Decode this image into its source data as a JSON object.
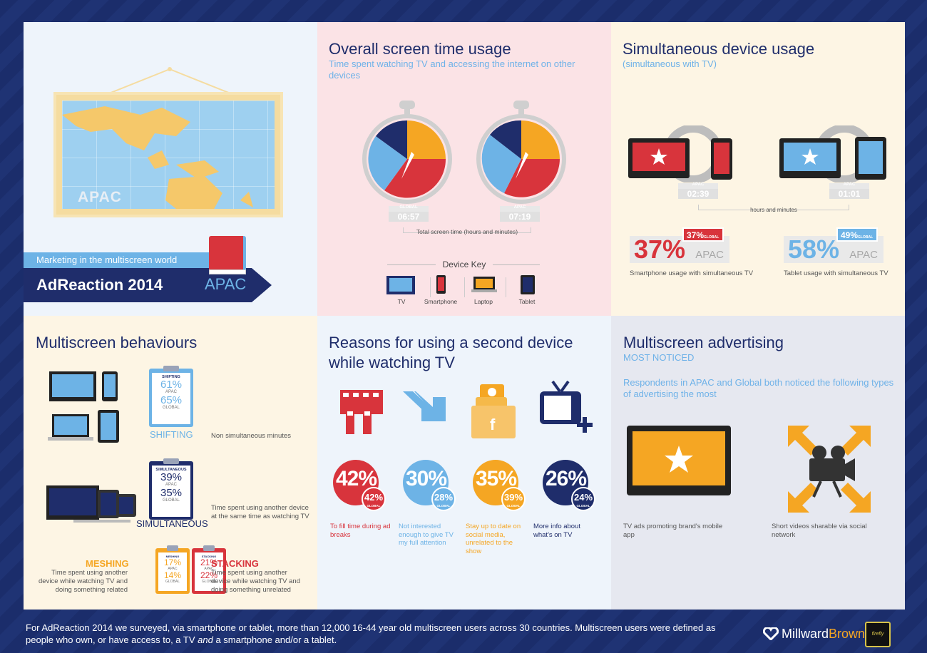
{
  "title_panel": {
    "map_label": "APAC",
    "tagline": "Marketing in the multiscreen world",
    "report_title": "AdReaction 2014",
    "region": "APAC"
  },
  "screen_time": {
    "title": "Overall screen time usage",
    "subtitle": "Time spent watching TV and accessing the internet on other devices",
    "timers": [
      {
        "label": "GLOBAL",
        "time": "06:57"
      },
      {
        "label": "APAC",
        "time": "07:19"
      }
    ],
    "caption": "Total screen time (hours and minutes)",
    "device_key_title": "Device Key",
    "devices": [
      "TV",
      "Smartphone",
      "Laptop",
      "Tablet"
    ]
  },
  "simultaneous": {
    "title": "Simultaneous device usage",
    "subtitle": "(simultaneous with TV)",
    "times": [
      {
        "label": "APAC",
        "time": "02:39"
      },
      {
        "label": "APAC",
        "time": "01:01"
      }
    ],
    "time_caption": "hours and minutes",
    "stats": [
      {
        "apac": "37%",
        "global": "37%",
        "global_label": "GLOBAL",
        "apac_label": "APAC",
        "caption": "Smartphone usage with simultaneous TV"
      },
      {
        "apac": "58%",
        "global": "49%",
        "global_label": "GLOBAL",
        "apac_label": "APAC",
        "caption": "Tablet usage with simultaneous TV"
      }
    ]
  },
  "behaviours": {
    "title": "Multiscreen behaviours",
    "shifting": {
      "tag": "SHIFTING",
      "apac": "61%",
      "global": "65%",
      "apac_label": "APAC",
      "global_label": "GLOBAL",
      "label": "SHIFTING",
      "desc": "Non simultaneous minutes"
    },
    "simultaneous": {
      "tag": "SIMULTANEOUS",
      "apac": "39%",
      "global": "35%",
      "apac_label": "APAC",
      "global_label": "GLOBAL",
      "label": "SIMULTANEOUS",
      "desc": "Time spent using another device at the same time as watching TV"
    },
    "meshing": {
      "tag": "MESHING",
      "apac": "17%",
      "global": "14%",
      "apac_label": "APAC",
      "global_label": "GLOBAL",
      "label": "MESHING",
      "desc": "Time spent using another device while watching TV and doing something related"
    },
    "stacking": {
      "tag": "STACKING",
      "apac": "21%",
      "global": "22%",
      "apac_label": "APAC",
      "global_label": "GLOBAL",
      "label": "STACKING",
      "desc": "Time spent using another device while watching TV and doing something unrelated"
    }
  },
  "reasons": {
    "title_line1": "Reasons for using a second device",
    "title_line2": "while watching TV",
    "items": [
      {
        "apac": "42%",
        "global": "42%",
        "global_label": "GLOBAL",
        "text": "To fill time during ad breaks",
        "color": "#d8343c"
      },
      {
        "apac": "30%",
        "global": "28%",
        "global_label": "GLOBAL",
        "text": "Not interested enough to give TV my full attention",
        "color": "#6db3e6"
      },
      {
        "apac": "35%",
        "global": "39%",
        "global_label": "GLOBAL",
        "text": "Stay up to date on social media, unrelated to the show",
        "color": "#f5a623"
      },
      {
        "apac": "26%",
        "global": "24%",
        "global_label": "GLOBAL",
        "text": "More info about what's on TV",
        "color": "#1f2d6b"
      }
    ]
  },
  "advertising": {
    "title": "Multiscreen advertising",
    "subtitle": "MOST NOTICED",
    "intro": "Respondents in APAC and Global both noticed the following types of advertising the most",
    "items": [
      {
        "text": "TV ads promoting brand's mobile app"
      },
      {
        "text": "Short videos sharable via social network"
      }
    ]
  },
  "footer": {
    "text_before": "For AdReaction 2014 we surveyed, via smartphone or tablet, more than 12,000 16-44 year old multiscreen users across 30 countries. Multiscreen users were defined as people who own, or have access to, a TV ",
    "and": "and",
    "text_after": " a smartphone and/or a tablet.",
    "brand_a": "Millward",
    "brand_b": "Brown",
    "partner": "firefly"
  }
}
